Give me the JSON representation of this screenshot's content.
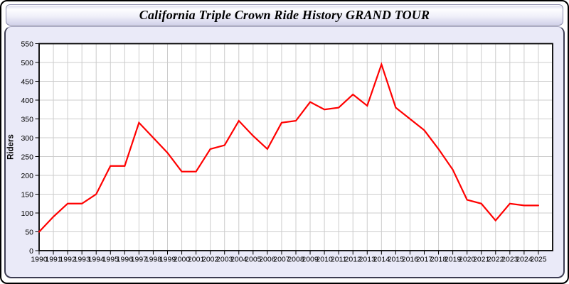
{
  "window": {
    "title": "California Triple Crown Ride History GRAND TOUR"
  },
  "chart_data": {
    "type": "line",
    "title": "California Triple Crown Ride History GRAND TOUR",
    "xlabel": "",
    "ylabel": "Riders",
    "x": [
      1990,
      1991,
      1992,
      1993,
      1994,
      1995,
      1996,
      1997,
      1998,
      1999,
      2000,
      2001,
      2002,
      2003,
      2004,
      2005,
      2006,
      2007,
      2008,
      2009,
      2010,
      2011,
      2012,
      2013,
      2014,
      2015,
      2016,
      2017,
      2018,
      2019,
      2020,
      2021,
      2022,
      2023,
      2024,
      2025
    ],
    "values": [
      50,
      90,
      125,
      125,
      150,
      225,
      225,
      340,
      300,
      260,
      210,
      210,
      270,
      280,
      345,
      305,
      270,
      340,
      345,
      395,
      375,
      380,
      415,
      385,
      495,
      380,
      350,
      320,
      270,
      215,
      135,
      125,
      80,
      125,
      120,
      120
    ],
    "ylim": [
      0,
      550
    ],
    "ytick_step": 50,
    "ytick_labels": [
      0,
      50,
      100,
      150,
      200,
      250,
      300,
      350,
      400,
      450,
      500,
      550
    ],
    "grid": true,
    "legend": "none",
    "colors": {
      "line": "#ff0000",
      "grid": "#cccccc",
      "frame": "#000000",
      "plot_bg": "#ffffff",
      "panel_bg": "#eaeaf8",
      "title_text": "#000000"
    }
  }
}
